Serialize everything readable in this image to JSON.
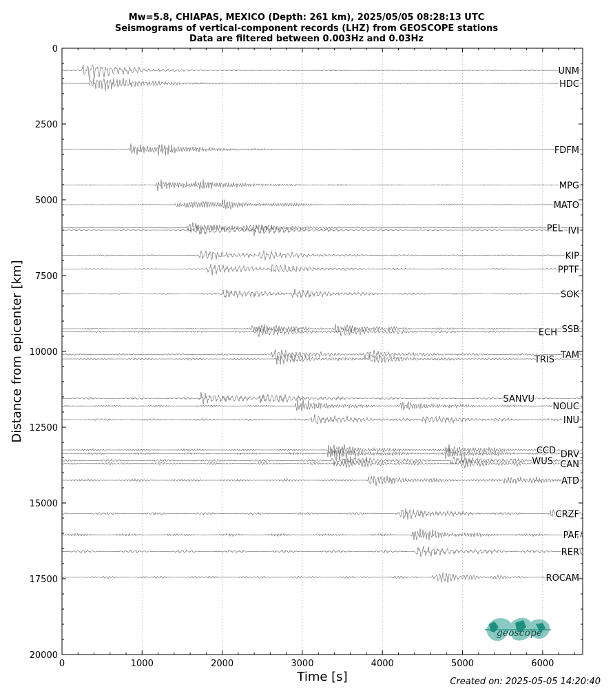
{
  "chart_data": {
    "type": "line",
    "title": [
      "Mw=5.8, CHIAPAS, MEXICO (Depth: 261 km), 2025/05/05 08:28:13 UTC",
      "Seismograms of vertical-component records (LHZ) from GEOSCOPE stations",
      "Data are filtered between 0.003Hz and 0.03Hz"
    ],
    "xlabel": "Time [s]",
    "ylabel": "Distance from epicenter [km]",
    "xlim": [
      0,
      6500
    ],
    "ylim": [
      20000,
      0
    ],
    "xticks": [
      0,
      1000,
      2000,
      3000,
      4000,
      5000,
      6000
    ],
    "yticks": [
      0,
      2500,
      5000,
      7500,
      10000,
      12500,
      15000,
      17500,
      20000
    ],
    "grid": "vertical dotted",
    "stations": [
      {
        "name": "UNM",
        "distance": 730,
        "arrival": 230
      },
      {
        "name": "HDC",
        "distance": 1160,
        "arrival": 330
      },
      {
        "name": "FDFM",
        "distance": 3340,
        "arrival": 820
      },
      {
        "name": "MPG",
        "distance": 4510,
        "arrival": 1150
      },
      {
        "name": "MATO",
        "distance": 5160,
        "arrival": 1380
      },
      {
        "name": "PEL",
        "distance": 5920,
        "arrival": 1550
      },
      {
        "name": "IVI",
        "distance": 6000,
        "arrival": 1650
      },
      {
        "name": "KIP",
        "distance": 6830,
        "arrival": 1700
      },
      {
        "name": "PPTF",
        "distance": 7280,
        "arrival": 1800
      },
      {
        "name": "SOK",
        "distance": 8100,
        "arrival": 1980
      },
      {
        "name": "SSB",
        "distance": 9250,
        "arrival": 2350
      },
      {
        "name": "ECH",
        "distance": 9350,
        "arrival": 2400
      },
      {
        "name": "TAM",
        "distance": 10100,
        "arrival": 2600
      },
      {
        "name": "TRIS",
        "distance": 10250,
        "arrival": 2650
      },
      {
        "name": "SANVU",
        "distance": 11550,
        "arrival": 1700
      },
      {
        "name": "NOUC",
        "distance": 11800,
        "arrival": 2900
      },
      {
        "name": "INU",
        "distance": 12250,
        "arrival": 3100
      },
      {
        "name": "CCD",
        "distance": 13250,
        "arrival": 3300
      },
      {
        "name": "DRV",
        "distance": 13370,
        "arrival": 3300
      },
      {
        "name": "WUS",
        "distance": 13600,
        "arrival": 3350
      },
      {
        "name": "CAN",
        "distance": 13700,
        "arrival": 3400
      },
      {
        "name": "ATD",
        "distance": 14250,
        "arrival": 3800
      },
      {
        "name": "CRZF",
        "distance": 15350,
        "arrival": 4200
      },
      {
        "name": "PAF",
        "distance": 16050,
        "arrival": 4350
      },
      {
        "name": "RER",
        "distance": 16600,
        "arrival": 4400
      },
      {
        "name": "ROCAM",
        "distance": 17450,
        "arrival": 4600
      }
    ]
  },
  "footer": {
    "created": "Created on: 2025-05-05 14:20:40",
    "logo_text": "geoscope",
    "logo_color": "#2a9d8f"
  }
}
